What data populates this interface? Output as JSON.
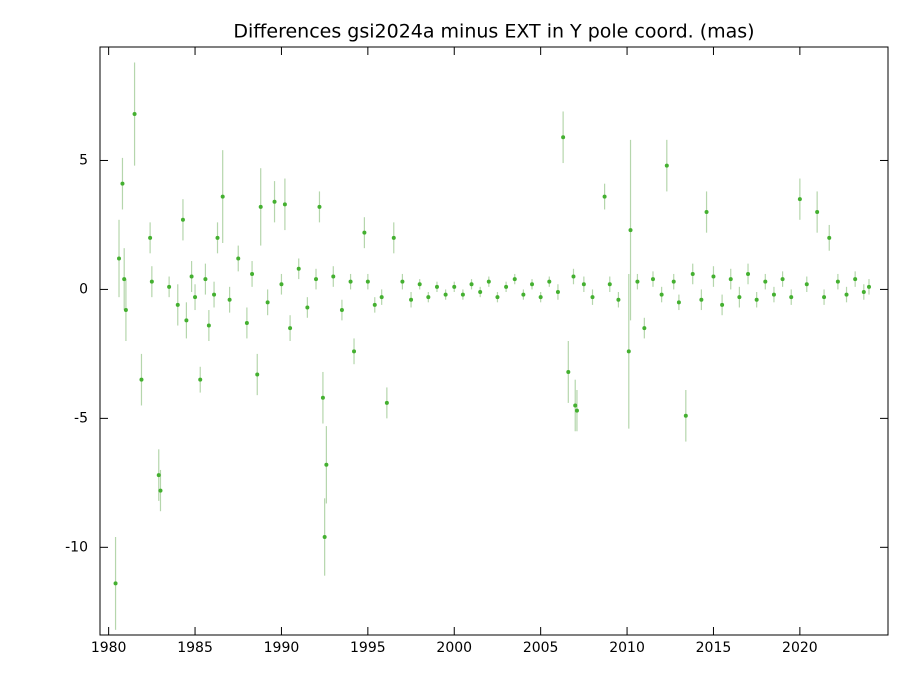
{
  "chart_data": {
    "type": "errorbar_scatter",
    "title": "Differences gsi2024a minus EXT in Y pole coord. (mas)",
    "xlim": [
      1979.5,
      2025.1
    ],
    "ylim": [
      -13.4,
      9.4
    ],
    "xticks": [
      1980,
      1985,
      1990,
      1995,
      2000,
      2005,
      2010,
      2015,
      2020
    ],
    "yticks": [
      -10,
      -5,
      0,
      5
    ],
    "color": "#44b030",
    "error_color": "#b5d6ac",
    "x": [
      1980.4,
      1980.6,
      1980.8,
      1980.9,
      1981.0,
      1981.5,
      1981.9,
      1982.4,
      1982.5,
      1982.9,
      1983.0,
      1983.5,
      1984.0,
      1984.3,
      1984.5,
      1984.8,
      1985.0,
      1985.3,
      1985.6,
      1985.8,
      1986.1,
      1986.3,
      1986.6,
      1987.0,
      1987.5,
      1988.0,
      1988.3,
      1988.6,
      1988.8,
      1989.2,
      1989.6,
      1990.0,
      1990.2,
      1990.5,
      1991.0,
      1991.5,
      1992.0,
      1992.2,
      1992.4,
      1992.5,
      1992.6,
      1993.0,
      1993.5,
      1994.0,
      1994.2,
      1994.8,
      1995.0,
      1995.4,
      1995.8,
      1996.1,
      1996.5,
      1997.0,
      1997.5,
      1998.0,
      1998.5,
      1999.0,
      1999.5,
      2000.0,
      2000.5,
      2001.0,
      2001.5,
      2002.0,
      2002.5,
      2003.0,
      2003.5,
      2004.0,
      2004.5,
      2005.0,
      2005.5,
      2006.0,
      2006.3,
      2006.6,
      2006.9,
      2007.0,
      2007.1,
      2007.5,
      2008.0,
      2008.7,
      2009.0,
      2009.5,
      2010.1,
      2010.2,
      2010.6,
      2011.0,
      2011.5,
      2012.0,
      2012.3,
      2012.7,
      2013.0,
      2013.4,
      2013.8,
      2014.3,
      2014.6,
      2015.0,
      2015.5,
      2016.0,
      2016.5,
      2017.0,
      2017.5,
      2018.0,
      2018.5,
      2019.0,
      2019.5,
      2020.0,
      2020.4,
      2021.0,
      2021.4,
      2021.7,
      2022.2,
      2022.7,
      2023.2,
      2023.7,
      2024.0
    ],
    "values": [
      -11.4,
      1.2,
      4.1,
      0.4,
      -0.8,
      6.8,
      -3.5,
      2.0,
      0.3,
      -7.2,
      -7.8,
      0.1,
      -0.6,
      2.7,
      -1.2,
      0.5,
      -0.3,
      -3.5,
      0.4,
      -1.4,
      -0.2,
      2.0,
      3.6,
      -0.4,
      1.2,
      -1.3,
      0.6,
      -3.3,
      3.2,
      -0.5,
      3.4,
      0.2,
      3.3,
      -1.5,
      0.8,
      -0.7,
      0.4,
      3.2,
      -4.2,
      -9.6,
      -6.8,
      0.5,
      -0.8,
      0.3,
      -2.4,
      2.2,
      0.3,
      -0.6,
      -0.3,
      -4.4,
      2.0,
      0.3,
      -0.4,
      0.2,
      -0.3,
      0.1,
      -0.2,
      0.1,
      -0.2,
      0.2,
      -0.1,
      0.3,
      -0.3,
      0.1,
      0.4,
      -0.2,
      0.2,
      -0.3,
      0.3,
      -0.1,
      5.9,
      -3.2,
      0.5,
      -4.5,
      -4.7,
      0.2,
      -0.3,
      3.6,
      0.2,
      -0.4,
      -2.4,
      2.3,
      0.3,
      -1.5,
      0.4,
      -0.2,
      4.8,
      0.3,
      -0.5,
      -4.9,
      0.6,
      -0.4,
      3.0,
      0.5,
      -0.6,
      0.4,
      -0.3,
      0.6,
      -0.4,
      0.3,
      -0.2,
      0.4,
      -0.3,
      3.5,
      0.2,
      3.0,
      -0.3,
      2.0,
      0.3,
      -0.2,
      0.4,
      -0.1,
      0.1
    ],
    "errors": [
      1.8,
      1.5,
      1.0,
      1.2,
      1.2,
      2.0,
      1.0,
      0.6,
      0.6,
      1.0,
      0.8,
      0.4,
      0.8,
      0.8,
      0.7,
      0.6,
      0.5,
      0.5,
      0.6,
      0.6,
      0.5,
      0.6,
      1.8,
      0.5,
      0.5,
      0.6,
      0.5,
      0.8,
      1.5,
      0.5,
      0.8,
      0.4,
      1.0,
      0.5,
      0.4,
      0.4,
      0.4,
      0.6,
      1.0,
      1.5,
      1.5,
      0.4,
      0.4,
      0.3,
      0.5,
      0.6,
      0.3,
      0.3,
      0.3,
      0.6,
      0.6,
      0.3,
      0.3,
      0.2,
      0.2,
      0.2,
      0.2,
      0.2,
      0.2,
      0.2,
      0.2,
      0.2,
      0.2,
      0.2,
      0.2,
      0.2,
      0.2,
      0.2,
      0.2,
      0.3,
      1.0,
      1.2,
      0.3,
      1.0,
      0.8,
      0.3,
      0.3,
      0.5,
      0.3,
      0.3,
      3.0,
      3.5,
      0.3,
      0.4,
      0.3,
      0.3,
      1.0,
      0.3,
      0.3,
      1.0,
      0.4,
      0.4,
      0.8,
      0.4,
      0.4,
      0.4,
      0.4,
      0.4,
      0.3,
      0.3,
      0.3,
      0.3,
      0.3,
      0.8,
      0.3,
      0.8,
      0.3,
      0.5,
      0.3,
      0.3,
      0.3,
      0.3,
      0.3
    ]
  }
}
